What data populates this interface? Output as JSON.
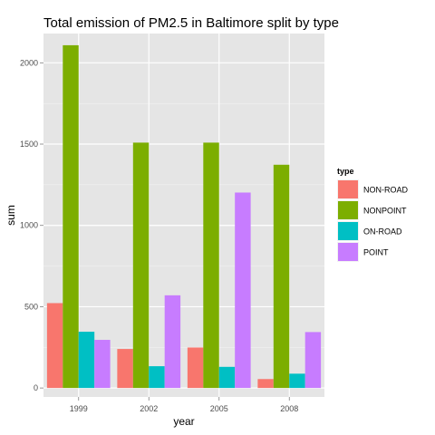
{
  "chart_data": {
    "type": "bar",
    "title": "Total emission of PM2.5 in Baltimore split by type",
    "xlabel": "year",
    "ylabel": "sum",
    "categories": [
      "1999",
      "2002",
      "2005",
      "2008"
    ],
    "ylim": [
      -55,
      2180
    ],
    "yticks": [
      0,
      500,
      1000,
      1500,
      2000
    ],
    "grid": true,
    "legend": {
      "title": "type",
      "position": "right"
    },
    "series": [
      {
        "name": "NON-ROAD",
        "color": "#f8766d",
        "values": [
          522,
          240,
          249,
          55
        ]
      },
      {
        "name": "NONPOINT",
        "color": "#7cae00",
        "values": [
          2108,
          1509,
          1509,
          1373
        ]
      },
      {
        "name": "ON-ROAD",
        "color": "#00bfc4",
        "values": [
          346,
          134,
          130,
          88
        ]
      },
      {
        "name": "POINT",
        "color": "#c77cff",
        "values": [
          296,
          570,
          1202,
          344
        ]
      }
    ]
  }
}
